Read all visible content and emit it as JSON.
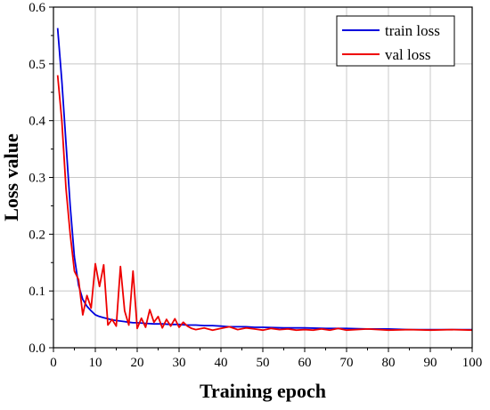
{
  "chart_data": {
    "type": "line",
    "title": "",
    "xlabel": "Training epoch",
    "ylabel": "Loss value",
    "xlim": [
      0,
      100
    ],
    "ylim": [
      0,
      0.6
    ],
    "xticks": [
      0,
      10,
      20,
      30,
      40,
      50,
      60,
      70,
      80,
      90,
      100
    ],
    "yticks": [
      0,
      0.1,
      0.2,
      0.3,
      0.4,
      0.5,
      0.6
    ],
    "xtick_labels": [
      "0",
      "10",
      "20",
      "30",
      "40",
      "50",
      "60",
      "70",
      "80",
      "90",
      "100"
    ],
    "ytick_labels": [
      "0.0",
      "0.1",
      "0.2",
      "0.3",
      "0.4",
      "0.5",
      "0.6"
    ],
    "grid": true,
    "legend": "top-right",
    "series": [
      {
        "name": "train loss",
        "color": "#0000dd",
        "x": [
          1,
          2,
          3,
          4,
          5,
          6,
          7,
          8,
          9,
          10,
          11,
          12,
          13,
          14,
          15,
          16,
          17,
          18,
          19,
          20,
          22,
          24,
          26,
          28,
          30,
          32,
          34,
          36,
          38,
          40,
          42,
          44,
          46,
          48,
          50,
          55,
          60,
          65,
          70,
          75,
          80,
          85,
          90,
          95,
          100
        ],
        "y": [
          0.563,
          0.47,
          0.36,
          0.25,
          0.16,
          0.11,
          0.085,
          0.073,
          0.065,
          0.058,
          0.055,
          0.053,
          0.051,
          0.049,
          0.048,
          0.047,
          0.046,
          0.045,
          0.044,
          0.044,
          0.043,
          0.042,
          0.042,
          0.041,
          0.041,
          0.04,
          0.04,
          0.039,
          0.039,
          0.038,
          0.037,
          0.037,
          0.037,
          0.036,
          0.036,
          0.035,
          0.035,
          0.034,
          0.034,
          0.033,
          0.033,
          0.032,
          0.032,
          0.032,
          0.032
        ]
      },
      {
        "name": "val loss",
        "color": "#ee0000",
        "x": [
          1,
          2,
          3,
          4,
          5,
          6,
          7,
          8,
          9,
          10,
          11,
          12,
          13,
          14,
          15,
          16,
          17,
          18,
          19,
          20,
          21,
          22,
          23,
          24,
          25,
          26,
          27,
          28,
          29,
          30,
          31,
          32,
          33,
          34,
          36,
          38,
          40,
          42,
          44,
          46,
          48,
          50,
          52,
          54,
          56,
          58,
          60,
          62,
          64,
          66,
          68,
          70,
          75,
          80,
          85,
          90,
          95,
          100
        ],
        "y": [
          0.48,
          0.4,
          0.28,
          0.2,
          0.135,
          0.12,
          0.058,
          0.092,
          0.07,
          0.148,
          0.108,
          0.146,
          0.04,
          0.05,
          0.038,
          0.143,
          0.065,
          0.04,
          0.135,
          0.034,
          0.052,
          0.036,
          0.067,
          0.045,
          0.055,
          0.035,
          0.05,
          0.038,
          0.051,
          0.036,
          0.045,
          0.038,
          0.034,
          0.032,
          0.035,
          0.031,
          0.034,
          0.037,
          0.032,
          0.035,
          0.033,
          0.031,
          0.034,
          0.032,
          0.033,
          0.031,
          0.032,
          0.031,
          0.033,
          0.031,
          0.034,
          0.031,
          0.033,
          0.031,
          0.032,
          0.031,
          0.032,
          0.031
        ]
      }
    ]
  }
}
